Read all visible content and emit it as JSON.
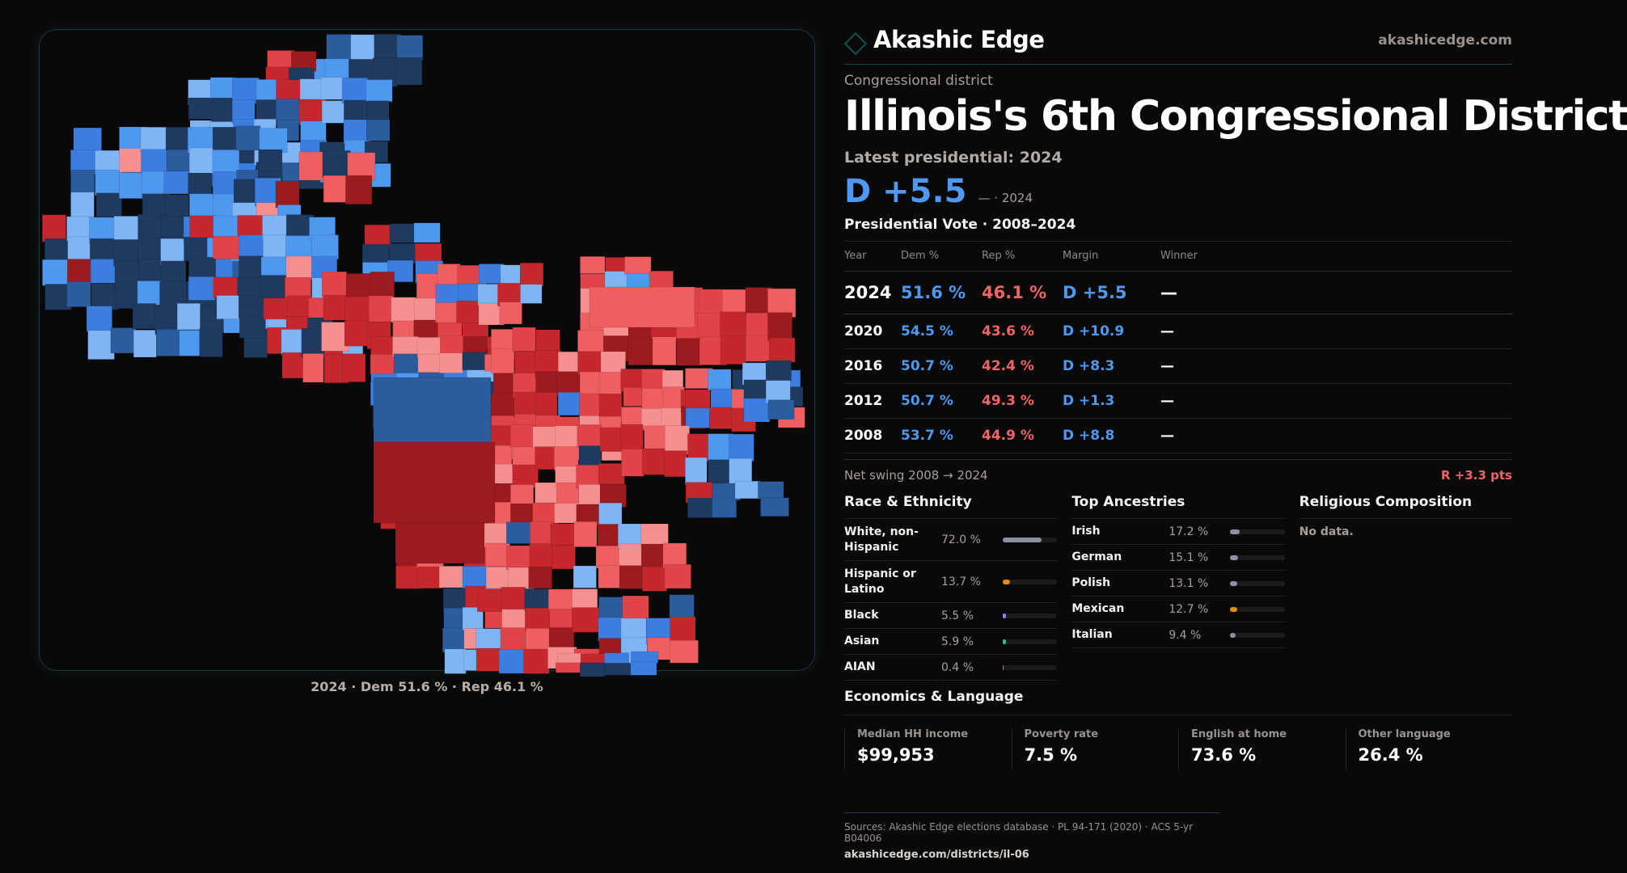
{
  "brand": {
    "name": "Akashic Edge",
    "url": "akashicedge.com",
    "logo_icon": "diamond-outline-icon",
    "accent_color": "#14505a"
  },
  "header": {
    "kicker": "Congressional district",
    "title": "Illinois's 6th Congressional District",
    "latest_label": "Latest presidential: 2024",
    "margin": "D +5.5",
    "margin_sub": "— · 2024"
  },
  "colors": {
    "dem": "#4f98f0",
    "rep": "#ef6466"
  },
  "presidential": {
    "heading": "Presidential Vote · 2008–2024",
    "columns": [
      "Year",
      "Dem %",
      "Rep %",
      "Margin",
      "Winner"
    ],
    "rows": [
      {
        "year": "2024",
        "dem": "51.6 %",
        "rep": "46.1 %",
        "margin": "D +5.5",
        "winner": "—"
      },
      {
        "year": "2020",
        "dem": "54.5 %",
        "rep": "43.6 %",
        "margin": "D +10.9",
        "winner": "—"
      },
      {
        "year": "2016",
        "dem": "50.7 %",
        "rep": "42.4 %",
        "margin": "D +8.3",
        "winner": "—"
      },
      {
        "year": "2012",
        "dem": "50.7 %",
        "rep": "49.3 %",
        "margin": "D +1.3",
        "winner": "—"
      },
      {
        "year": "2008",
        "dem": "53.7 %",
        "rep": "44.9 %",
        "margin": "D +8.8",
        "winner": "—"
      }
    ],
    "swing_label": "Net swing 2008 → 2024",
    "swing_value": "R +3.3 pts"
  },
  "race": {
    "heading": "Race & Ethnicity",
    "items": [
      {
        "label": "White, non-Hispanic",
        "value": "72.0 %",
        "pct": 72.0,
        "color": "#8892a3"
      },
      {
        "label": "Hispanic or Latino",
        "value": "13.7 %",
        "pct": 13.7,
        "color": "#e0900e"
      },
      {
        "label": "Black",
        "value": "5.5 %",
        "pct": 5.5,
        "color": "#9b7ce8"
      },
      {
        "label": "Asian",
        "value": "5.9 %",
        "pct": 5.9,
        "color": "#2fbf8a"
      },
      {
        "label": "AIAN",
        "value": "0.4 %",
        "pct": 0.4,
        "color": "#d97a1a"
      }
    ]
  },
  "ancestry": {
    "heading": "Top Ancestries",
    "items": [
      {
        "label": "Irish",
        "value": "17.2 %",
        "pct": 17.2,
        "color": "#8892a3"
      },
      {
        "label": "German",
        "value": "15.1 %",
        "pct": 15.1,
        "color": "#8892a3"
      },
      {
        "label": "Polish",
        "value": "13.1 %",
        "pct": 13.1,
        "color": "#8892a3"
      },
      {
        "label": "Mexican",
        "value": "12.7 %",
        "pct": 12.7,
        "color": "#e0900e"
      },
      {
        "label": "Italian",
        "value": "9.4 %",
        "pct": 9.4,
        "color": "#8892a3"
      }
    ]
  },
  "religion": {
    "heading": "Religious Composition",
    "empty": "No data."
  },
  "economics": {
    "heading": "Economics & Language",
    "cards": [
      {
        "label": "Median HH income",
        "value": "$99,953"
      },
      {
        "label": "Poverty rate",
        "value": "7.5 %"
      },
      {
        "label": "English at home",
        "value": "73.6 %"
      },
      {
        "label": "Other language",
        "value": "26.4 %"
      }
    ]
  },
  "map": {
    "caption": "2024 · Dem 51.6 % · Rep 46.1 %",
    "palette": {
      "dem_strong": "#1f3a60",
      "dem_med": "#2b5c9e",
      "dem_lean": "#3b7ee0",
      "dem_tilt": "#4f98f0",
      "dem_light": "#7fb4f5",
      "rep_strong": "#9c1b1f",
      "rep_med": "#c4282c",
      "rep_lean": "#e04448",
      "rep_tilt": "#ef5e60",
      "rep_light": "#f59090"
    }
  },
  "footer": {
    "sources": "Sources: Akashic Edge elections database · PL 94-171 (2020) · ACS 5-yr B04006",
    "url": "akashicedge.com/districts/il-06"
  }
}
